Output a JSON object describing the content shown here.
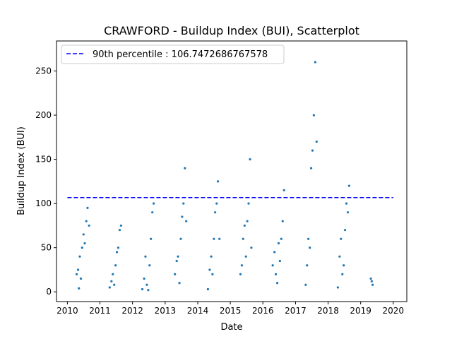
{
  "chart_data": {
    "type": "scatter",
    "title": "CRAWFORD - Buildup Index (BUI), Scatterplot",
    "xlabel": "Date",
    "ylabel": "Buildup Index (BUI)",
    "xlim": [
      "2009-09-01",
      "2020-06-01"
    ],
    "ylim": [
      -11,
      284
    ],
    "x_ticks": [
      "2010",
      "2011",
      "2012",
      "2013",
      "2014",
      "2015",
      "2016",
      "2017",
      "2018",
      "2019",
      "2020"
    ],
    "y_ticks": [
      0,
      50,
      100,
      150,
      200,
      250
    ],
    "grid": false,
    "legend": {
      "placement": "upper-left",
      "entries": [
        "90th percentile : 106.7472686767578"
      ]
    },
    "colors": {
      "points": "#1f77b4",
      "reference_line": "#0000ff"
    },
    "reference_line": {
      "name": "90th percentile : 106.7472686767578",
      "y": 106.7472686767578,
      "x_range": [
        "2010-01-01",
        "2020-01-01"
      ],
      "style": "dashed"
    },
    "series": [
      {
        "marker": "point",
        "x": [
          "2010-04-15",
          "2010-05-01",
          "2010-05-10",
          "2010-05-20",
          "2010-06-01",
          "2010-06-15",
          "2010-07-01",
          "2010-07-15",
          "2010-08-01",
          "2010-08-15",
          "2010-09-01",
          "2011-04-20",
          "2011-05-10",
          "2011-05-25",
          "2011-06-10",
          "2011-06-25",
          "2011-07-10",
          "2011-07-25",
          "2011-08-10",
          "2011-08-25",
          "2012-04-20",
          "2012-05-10",
          "2012-05-25",
          "2012-06-10",
          "2012-06-25",
          "2012-07-10",
          "2012-07-25",
          "2012-08-10",
          "2012-08-25",
          "2013-04-20",
          "2013-05-10",
          "2013-05-25",
          "2013-06-10",
          "2013-06-25",
          "2013-07-10",
          "2013-07-25",
          "2013-08-10",
          "2013-08-25",
          "2014-04-25",
          "2014-05-15",
          "2014-06-01",
          "2014-06-15",
          "2014-07-01",
          "2014-07-15",
          "2014-08-01",
          "2014-08-15",
          "2014-09-01",
          "2015-04-25",
          "2015-05-10",
          "2015-05-25",
          "2015-06-10",
          "2015-06-25",
          "2015-07-10",
          "2015-07-25",
          "2015-08-10",
          "2015-08-25",
          "2016-04-20",
          "2016-05-10",
          "2016-05-25",
          "2016-06-10",
          "2016-06-25",
          "2016-07-10",
          "2016-07-25",
          "2016-08-10",
          "2016-08-25",
          "2017-04-25",
          "2017-05-10",
          "2017-05-25",
          "2017-06-10",
          "2017-06-25",
          "2017-07-10",
          "2017-07-25",
          "2017-08-10",
          "2017-08-25",
          "2018-04-20",
          "2018-05-10",
          "2018-05-25",
          "2018-06-10",
          "2018-06-25",
          "2018-07-10",
          "2018-07-25",
          "2018-08-10",
          "2018-08-25",
          "2019-04-25",
          "2019-05-05",
          "2019-05-15"
        ],
        "y": [
          20,
          25,
          4,
          40,
          15,
          50,
          65,
          55,
          80,
          95,
          75,
          5,
          12,
          20,
          8,
          30,
          45,
          50,
          70,
          75,
          3,
          15,
          40,
          8,
          2,
          30,
          60,
          90,
          100,
          20,
          35,
          40,
          10,
          60,
          85,
          100,
          140,
          80,
          3,
          25,
          40,
          20,
          60,
          90,
          100,
          125,
          60,
          20,
          30,
          60,
          75,
          40,
          80,
          100,
          150,
          50,
          30,
          45,
          20,
          10,
          55,
          35,
          60,
          80,
          115,
          8,
          30,
          60,
          50,
          140,
          160,
          200,
          260,
          170,
          5,
          40,
          60,
          20,
          30,
          70,
          100,
          90,
          120,
          15,
          12,
          8
        ]
      }
    ]
  }
}
